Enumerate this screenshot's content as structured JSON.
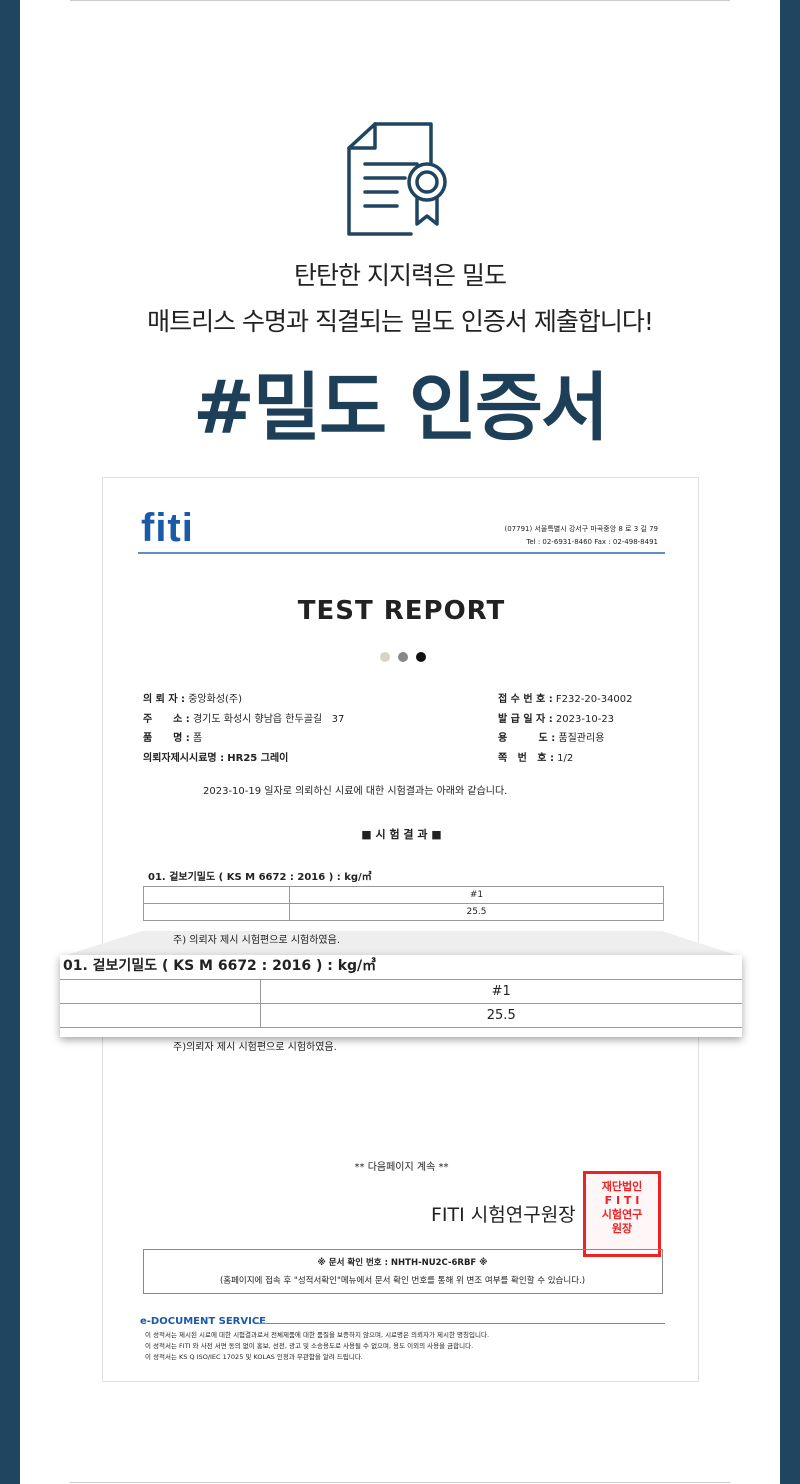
{
  "header": {
    "line1": "탄탄한 지지력은 밀도",
    "line2": "매트리스 수명과 직결되는 밀도 인증서 제출합니다!",
    "title": "#밀도 인증서",
    "icon": "certificate-document-icon"
  },
  "colors": {
    "navy": "#1f4560",
    "title": "#1e3f58",
    "fiti_blue": "#1a5aa8",
    "seal": "#e22222"
  },
  "report": {
    "logo": "fiti",
    "address": "(07791) 서울특별시 강서구 마곡중앙 8 로 3 길 79",
    "tel": "Tel : 02-6931-8460    Fax : 02-498-8491",
    "heading": "TEST REPORT",
    "left_fields": [
      {
        "label": "의 뢰 자 :",
        "value": "중앙화성(주)"
      },
      {
        "label": "주      소 :",
        "value": "경기도 화성시 향남읍 한두골길   37"
      },
      {
        "label": "품      명 :",
        "value": "폼"
      },
      {
        "label": "의뢰자제시시료명 :",
        "value": "HR25 그레이"
      }
    ],
    "right_fields": [
      {
        "label": "접 수 번 호 :",
        "value": "F232-20-34002"
      },
      {
        "label": "발 급 일 자 :",
        "value": "2023-10-23"
      },
      {
        "label": "용         도 :",
        "value": "품질관리용"
      },
      {
        "label": "쪽   번   호 :",
        "value": "1/2"
      }
    ],
    "intro": "2023-10-19 일자로 의뢰하신 시료에 대한 시험결과는 아래와 같습니다.",
    "section": "■  시 험 결 과  ■",
    "test_title": "01.  겉보기밀도 ( KS M 6672 : 2016 ) : kg/㎥",
    "col_header": "#1",
    "value": "25.5",
    "note": "주) 의뢰자 제시 시험편으로 시험하였음.",
    "note_mag": "주)의뢰자 제시 시험편으로 시험하였음.",
    "next_page": "** 다음페이지 계속 **",
    "signer": "FITI 시험연구원장",
    "seal_text": "재단법인 FITI 시험연구원",
    "confirm": "※ 문서 확인 번호 : NHTH-NU2C-6RBF ※",
    "confirm_note": "(홈페이지에 접속 후 \"성적서확인\"메뉴에서 문서 확인 번호를 통해 위 변조 여부를 확인할 수 있습니다.)",
    "edoc": "e-DOCUMENT SERVICE",
    "disclaimers": [
      "이 성적서는 제시된 시료에 대한 시험결과로서 전체제품에 대한 품질을 보증하지 않으며, 시료명은 의뢰자가 제시한 명칭입니다.",
      "이 성적서는 FITI 와 사전 서면 동의 없이 홍보, 선전, 광고 및 소송용도로 사용될 수 없으며, 용도 이외의 사용을 금합니다.",
      "이 성적서는 KS Q ISO/IEC 17025 및 KOLAS 인정과 무관함을 알려 드립니다."
    ]
  }
}
